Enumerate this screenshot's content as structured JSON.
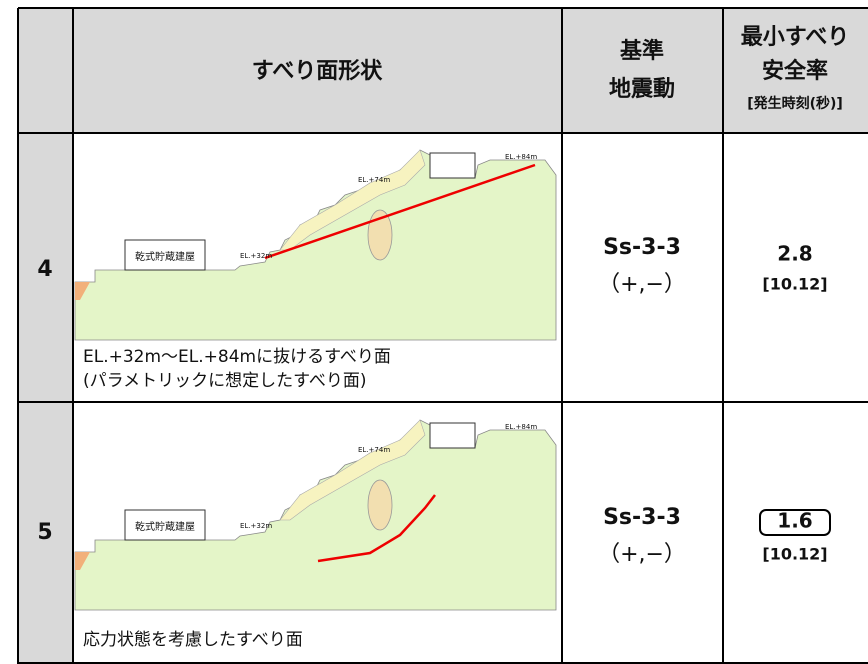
{
  "header": {
    "shape": "すべり面形状",
    "motion": [
      "基準",
      "地震動"
    ],
    "safety": [
      "最小すべり",
      "安全率",
      "[発生時刻(秒)]"
    ]
  },
  "rows": [
    {
      "no": "4",
      "diagram": {
        "building": "乾式貯蔵建屋",
        "el_low": "EL.+32m",
        "el_mid": "EL.+74m",
        "el_high": "EL.+84m"
      },
      "caption": [
        "EL.+32m～EL.+84mに抜けるすべり面",
        "(パラメトリックに想定したすべり面)"
      ],
      "motion": [
        "Ss-3-3",
        "（+,−）"
      ],
      "safety": "2.8",
      "time": "[10.12]"
    },
    {
      "no": "5",
      "diagram": {
        "building": "乾式貯蔵建屋",
        "el_low": "EL.+32m",
        "el_mid": "EL.+74m",
        "el_high": "EL.+84m"
      },
      "caption": [
        "応力状態を考慮したすべり面"
      ],
      "motion": [
        "Ss-3-3",
        "（+,−）"
      ],
      "safety": "1.6",
      "time": "[10.12]"
    }
  ]
}
